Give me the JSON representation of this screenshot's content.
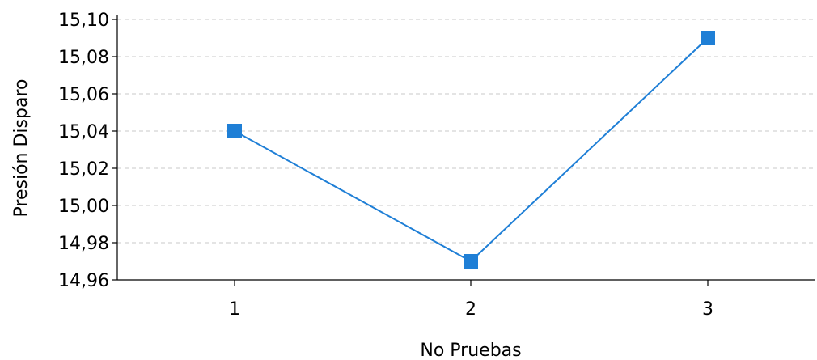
{
  "chart_data": {
    "type": "line",
    "title": "",
    "xlabel": "No Pruebas",
    "ylabel": "Presión Disparo",
    "x": [
      1,
      2,
      3
    ],
    "x_tick_labels": [
      "1",
      "2",
      "3"
    ],
    "series": [
      {
        "values": [
          15.04,
          14.97,
          15.09
        ],
        "color": "#1f7fd6"
      }
    ],
    "ylim": [
      14.96,
      15.1
    ],
    "y_ticks": [
      14.96,
      14.98,
      15.0,
      15.02,
      15.04,
      15.06,
      15.08,
      15.1
    ],
    "y_tick_labels": [
      "14,96",
      "14,98",
      "15,00",
      "15,02",
      "15,04",
      "15,06",
      "15,08",
      "15,10"
    ],
    "grid": "horizontal-dashed",
    "legend": "none",
    "marker": "square"
  }
}
